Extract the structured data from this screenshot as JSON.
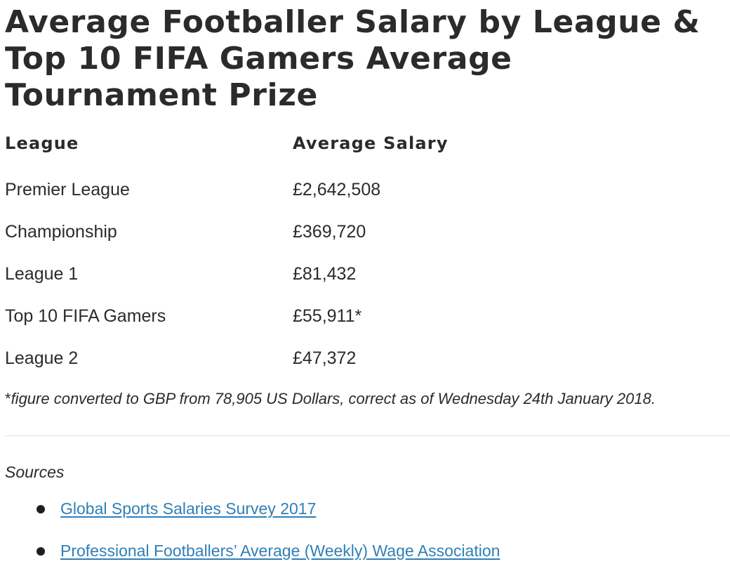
{
  "title": "Average Footballer Salary by League & Top 10 FIFA Gamers Average Tournament Prize",
  "table": {
    "headers": [
      "League",
      "Average Salary"
    ],
    "rows": [
      [
        "Premier League",
        "£2,642,508"
      ],
      [
        "Championship",
        "£369,720"
      ],
      [
        "League 1",
        "£81,432"
      ],
      [
        "Top 10 FIFA Gamers",
        "£55,911*"
      ],
      [
        "League 2",
        "£47,372"
      ]
    ]
  },
  "footnote": {
    "marker": "*",
    "text": "figure converted to GBP from 78,905 US Dollars, correct as of Wednesday 24th January 2018."
  },
  "sources": {
    "heading": "Sources",
    "links": [
      "Global Sports Salaries Survey 2017",
      "Professional Footballers’ Average (Weekly) Wage Association"
    ]
  }
}
